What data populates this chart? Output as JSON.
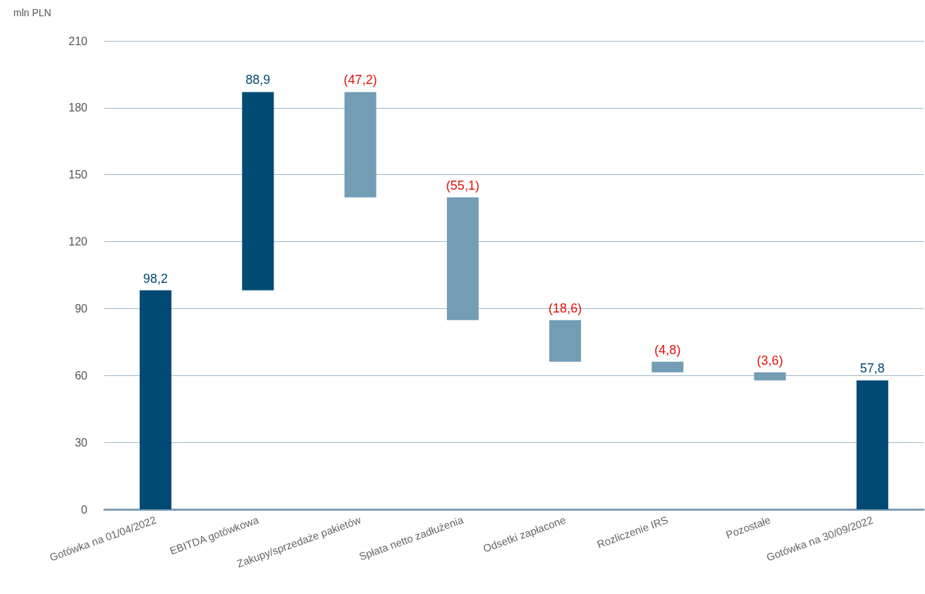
{
  "chart_data": {
    "type": "bar",
    "ylabel": "mln PLN",
    "categories": [
      "Gotówka na 01/04/2022",
      "EBITDA gotówkowa",
      "Zakupy/sprzedaże pakietów",
      "Spłata netto zadłużenia",
      "Odsetki zapłacone",
      "Rozliczenie IRS",
      "Pozostałe",
      "Gotówka na 30/09/2022"
    ],
    "values": [
      98.2,
      88.9,
      -47.2,
      -55.1,
      -18.6,
      -4.8,
      -3.6,
      57.8
    ],
    "base": [
      0,
      98.2,
      187.1,
      139.9,
      84.8,
      66.2,
      61.4,
      0
    ],
    "colors": [
      "#004a74",
      "#004a74",
      "#739db5",
      "#739db5",
      "#739db5",
      "#739db5",
      "#739db5",
      "#004a74"
    ],
    "value_labels": [
      "98,2",
      "88,9",
      "(47,2)",
      "(55,1)",
      "(18,6)",
      "(4,8)",
      "(3,6)",
      "57,8"
    ],
    "ylim": [
      0,
      210
    ],
    "yticks": [
      0,
      30,
      60,
      90,
      120,
      150,
      180,
      210
    ],
    "grid": "y"
  }
}
